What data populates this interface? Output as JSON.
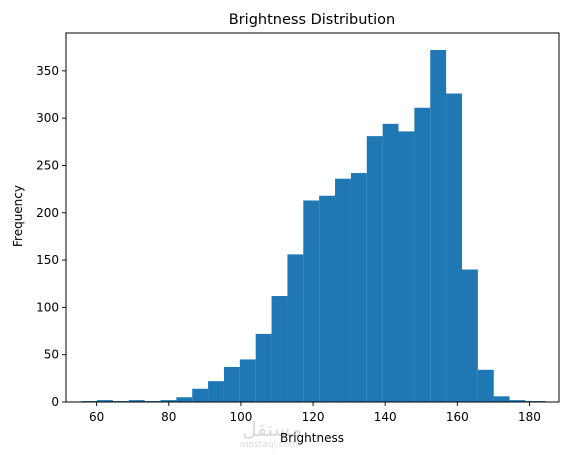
{
  "chart_data": {
    "type": "bar",
    "title": "Brightness Distribution",
    "xlabel": "Brightness",
    "ylabel": "Frequency",
    "xlim": [
      51.5,
      188.2
    ],
    "ylim": [
      0,
      390
    ],
    "xticks": [
      60,
      80,
      100,
      120,
      140,
      160,
      180
    ],
    "yticks": [
      0,
      50,
      100,
      150,
      200,
      250,
      300,
      350
    ],
    "grid": false,
    "bar_color": "#1f77b4",
    "bins": [
      {
        "x0": 55.7,
        "x1": 60.1,
        "count": 1
      },
      {
        "x0": 60.1,
        "x1": 64.5,
        "count": 2
      },
      {
        "x0": 64.5,
        "x1": 68.9,
        "count": 1
      },
      {
        "x0": 68.9,
        "x1": 73.3,
        "count": 2
      },
      {
        "x0": 73.3,
        "x1": 77.7,
        "count": 1
      },
      {
        "x0": 77.7,
        "x1": 82.1,
        "count": 2
      },
      {
        "x0": 82.1,
        "x1": 86.5,
        "count": 5
      },
      {
        "x0": 86.5,
        "x1": 90.9,
        "count": 14
      },
      {
        "x0": 90.9,
        "x1": 95.3,
        "count": 22
      },
      {
        "x0": 95.3,
        "x1": 99.7,
        "count": 37
      },
      {
        "x0": 99.7,
        "x1": 104.1,
        "count": 45
      },
      {
        "x0": 104.1,
        "x1": 108.5,
        "count": 72
      },
      {
        "x0": 108.5,
        "x1": 112.9,
        "count": 112
      },
      {
        "x0": 112.9,
        "x1": 117.3,
        "count": 156
      },
      {
        "x0": 117.3,
        "x1": 121.7,
        "count": 213
      },
      {
        "x0": 121.7,
        "x1": 126.1,
        "count": 218
      },
      {
        "x0": 126.1,
        "x1": 130.5,
        "count": 236
      },
      {
        "x0": 130.5,
        "x1": 134.9,
        "count": 242
      },
      {
        "x0": 134.9,
        "x1": 139.3,
        "count": 281
      },
      {
        "x0": 139.3,
        "x1": 143.7,
        "count": 294
      },
      {
        "x0": 143.7,
        "x1": 148.1,
        "count": 286
      },
      {
        "x0": 148.1,
        "x1": 152.5,
        "count": 311
      },
      {
        "x0": 152.5,
        "x1": 156.9,
        "count": 372
      },
      {
        "x0": 156.9,
        "x1": 161.3,
        "count": 326
      },
      {
        "x0": 161.3,
        "x1": 165.7,
        "count": 140
      },
      {
        "x0": 165.7,
        "x1": 170.1,
        "count": 34
      },
      {
        "x0": 170.1,
        "x1": 174.5,
        "count": 6
      },
      {
        "x0": 174.5,
        "x1": 178.9,
        "count": 2
      },
      {
        "x0": 178.9,
        "x1": 183.3,
        "count": 1
      },
      {
        "x0": 183.3,
        "x1": 184.5,
        "count": 1
      }
    ]
  },
  "watermark": {
    "text": "مستقل",
    "subtext": "mostaql.com"
  }
}
